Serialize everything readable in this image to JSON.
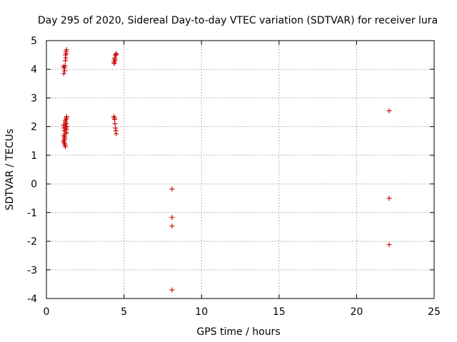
{
  "chart_data": {
    "type": "scatter",
    "title": "Day 295 of 2020, Sidereal Day-to-day VTEC variation (SDTVAR) for receiver lura",
    "xlabel": "GPS time / hours",
    "ylabel": "SDTVAR / TECUs",
    "xlim": [
      0,
      25
    ],
    "ylim": [
      -4,
      5
    ],
    "x_ticks": [
      0,
      5,
      10,
      15,
      20,
      25
    ],
    "y_ticks": [
      -4,
      -3,
      -2,
      -1,
      0,
      1,
      2,
      3,
      4,
      5
    ],
    "x_tick_labels": [
      "0",
      "5",
      "10",
      "15",
      "20",
      "25"
    ],
    "y_tick_labels": [
      "-4",
      "-3",
      "-2",
      "-1",
      "0",
      "1",
      "2",
      "3",
      "4",
      "5"
    ],
    "grid": true,
    "legend": "none",
    "marker": "+",
    "color": "#cc0000",
    "series": [
      {
        "name": "SDTVAR",
        "points": [
          [
            1.1,
            4.1
          ],
          [
            1.15,
            4.05
          ],
          [
            1.18,
            3.95
          ],
          [
            1.12,
            3.85
          ],
          [
            1.2,
            4.12
          ],
          [
            1.22,
            4.3
          ],
          [
            1.25,
            4.4
          ],
          [
            1.23,
            4.5
          ],
          [
            1.28,
            4.55
          ],
          [
            1.26,
            4.62
          ],
          [
            1.3,
            4.68
          ],
          [
            1.1,
            2.05
          ],
          [
            1.13,
            1.95
          ],
          [
            1.15,
            1.85
          ],
          [
            1.12,
            1.7
          ],
          [
            1.18,
            1.6
          ],
          [
            1.1,
            1.5
          ],
          [
            1.14,
            1.45
          ],
          [
            1.17,
            1.4
          ],
          [
            1.2,
            1.35
          ],
          [
            1.22,
            1.3
          ],
          [
            1.25,
            1.75
          ],
          [
            1.28,
            1.8
          ],
          [
            1.3,
            1.9
          ],
          [
            1.32,
            2.0
          ],
          [
            1.27,
            2.1
          ],
          [
            1.24,
            2.15
          ],
          [
            1.21,
            2.2
          ],
          [
            1.26,
            2.25
          ],
          [
            1.29,
            2.3
          ],
          [
            1.31,
            2.35
          ],
          [
            1.18,
            1.55
          ],
          [
            1.16,
            1.65
          ],
          [
            1.2,
            2.05
          ],
          [
            1.23,
            1.95
          ],
          [
            4.35,
            4.25
          ],
          [
            4.38,
            4.2
          ],
          [
            4.4,
            4.35
          ],
          [
            4.42,
            4.4
          ],
          [
            4.45,
            4.48
          ],
          [
            4.48,
            4.52
          ],
          [
            4.5,
            4.55
          ],
          [
            4.43,
            4.3
          ],
          [
            4.35,
            2.35
          ],
          [
            4.38,
            2.3
          ],
          [
            4.4,
            2.25
          ],
          [
            4.42,
            2.1
          ],
          [
            4.45,
            1.95
          ],
          [
            4.48,
            1.85
          ],
          [
            4.5,
            1.75
          ],
          [
            8.1,
            -0.18
          ],
          [
            8.1,
            -1.17
          ],
          [
            8.1,
            -1.47
          ],
          [
            8.1,
            -3.7
          ],
          [
            22.1,
            2.55
          ],
          [
            22.1,
            -0.5
          ],
          [
            22.1,
            -2.12
          ]
        ]
      }
    ]
  }
}
